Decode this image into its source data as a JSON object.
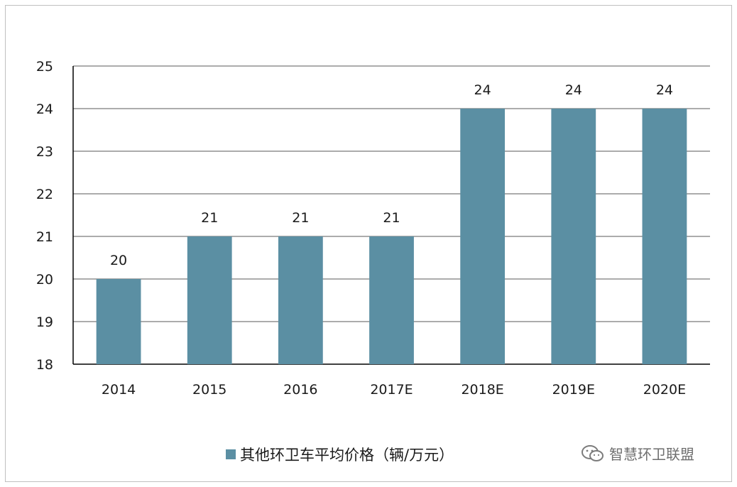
{
  "chart_data": {
    "type": "bar",
    "categories": [
      "2014",
      "2015",
      "2016",
      "2017E",
      "2018E",
      "2019E",
      "2020E"
    ],
    "series": [
      {
        "name": "其他环卫车平均价格（辆/万元）",
        "values": [
          20,
          21,
          21,
          21,
          24,
          24,
          24
        ]
      }
    ],
    "data_labels": [
      "20",
      "21",
      "21",
      "21",
      "24",
      "24",
      "24"
    ],
    "ylim": [
      18,
      25
    ],
    "yticks": [
      18,
      19,
      20,
      21,
      22,
      23,
      24,
      25
    ],
    "grid": true,
    "legend_position": "bottom",
    "bar_color": "#5b8fa3",
    "title": "",
    "xlabel": "",
    "ylabel": ""
  },
  "watermark": {
    "text": "智慧环卫联盟",
    "icon": "wechat-icon"
  }
}
